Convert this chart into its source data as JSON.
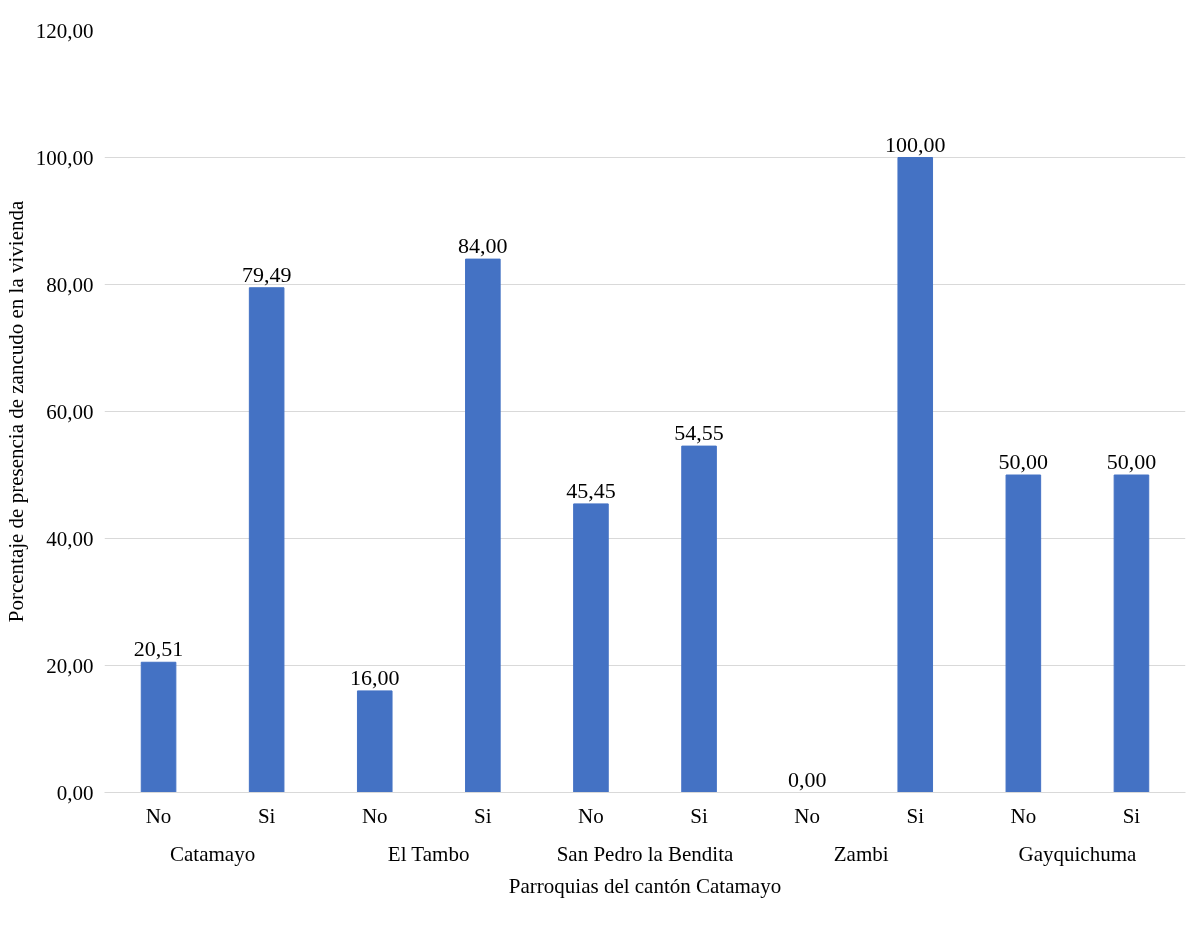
{
  "chart_data": {
    "type": "bar",
    "xlabel": "Parroquias del cantón Catamayo",
    "ylabel": "Porcentaje de presencia de zancudo en la vivienda",
    "categories": [
      "No",
      "Si",
      "No",
      "Si",
      "No",
      "Si",
      "No",
      "Si",
      "No",
      "Si"
    ],
    "values": [
      20.51,
      79.49,
      16.0,
      84.0,
      45.45,
      54.55,
      0.0,
      100.0,
      50.0,
      50.0
    ],
    "value_labels": [
      "20,51",
      "79,49",
      "16,00",
      "84,00",
      "45,45",
      "54,55",
      "0,00",
      "100,00",
      "50,00",
      "50,00"
    ],
    "color": "#4472c4",
    "annotations": [
      "Catamayo",
      "El Tambo",
      "San Pedro la Bendita",
      "Zambi",
      "Gayquichuma"
    ],
    "ylim": [
      0,
      120
    ],
    "yticks": [
      {
        "value": 0,
        "label": "0,00"
      },
      {
        "value": 20,
        "label": "20,00"
      },
      {
        "value": 40,
        "label": "40,00"
      },
      {
        "value": 60,
        "label": "60,00"
      },
      {
        "value": 80,
        "label": "80,00"
      },
      {
        "value": 100,
        "label": "100,00"
      },
      {
        "value": 120,
        "label": "120,00"
      }
    ],
    "grid": "y"
  }
}
